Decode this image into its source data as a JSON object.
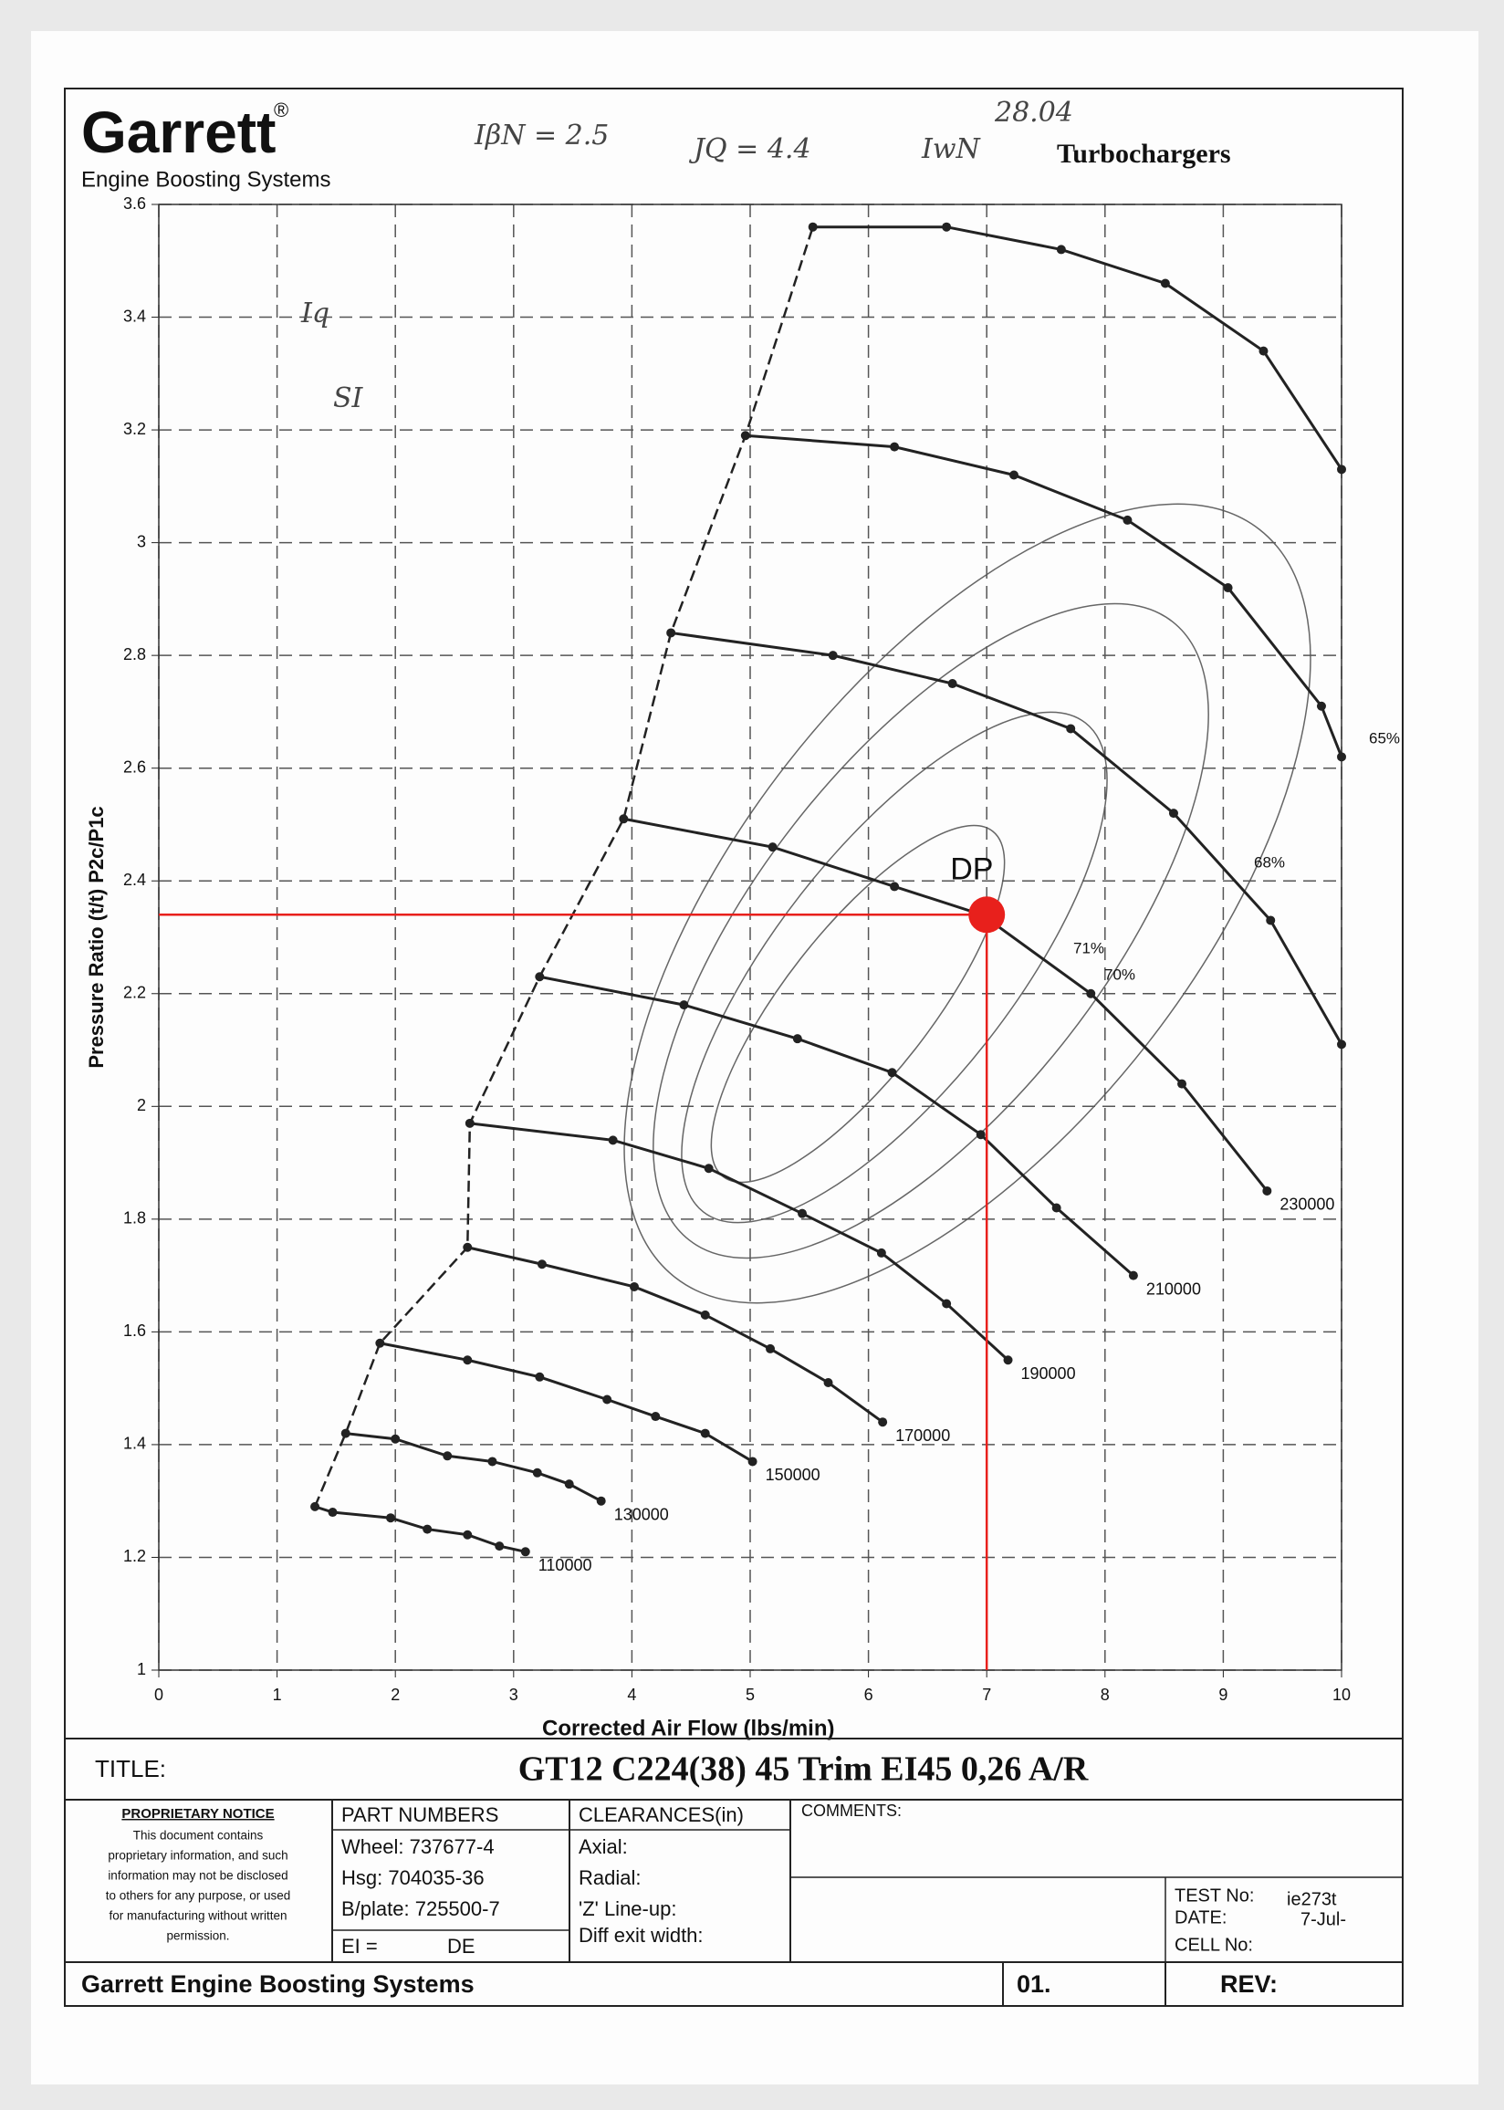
{
  "header": {
    "brand": "Garrett",
    "registered": "®",
    "subtitle": "Engine Boosting Systems",
    "product": "Turbochargers",
    "notes": [
      "IβN = 2.5",
      "JQ = 4.4",
      "IwN",
      "28.04",
      "Iq",
      "SI"
    ]
  },
  "chart_data": {
    "type": "line",
    "x_label": "Corrected Air Flow (lbs/min)",
    "y_label": "Pressure Ratio (t/t) P2c/P1c",
    "xlim": [
      0,
      10
    ],
    "xticks": [
      0,
      1,
      2,
      3,
      4,
      5,
      6,
      7,
      8,
      9,
      10
    ],
    "ylim": [
      1,
      3.6
    ],
    "yticks": [
      1,
      1.2,
      1.4,
      1.6,
      1.8,
      2,
      2.2,
      2.4,
      2.6,
      2.8,
      3,
      3.2,
      3.4,
      3.6
    ],
    "grid": true,
    "series": [
      {
        "name": "110000",
        "color": "#222222",
        "x": [
          1.32,
          1.47,
          1.96,
          2.27,
          2.61,
          2.88,
          3.1
        ],
        "values": [
          1.29,
          1.28,
          1.27,
          1.25,
          1.24,
          1.22,
          1.21
        ]
      },
      {
        "name": "130000",
        "color": "#222222",
        "x": [
          1.58,
          2.0,
          2.44,
          2.82,
          3.2,
          3.47,
          3.74
        ],
        "values": [
          1.42,
          1.41,
          1.38,
          1.37,
          1.35,
          1.33,
          1.3
        ]
      },
      {
        "name": "150000",
        "color": "#222222",
        "x": [
          1.87,
          2.61,
          3.22,
          3.79,
          4.2,
          4.62,
          5.02
        ],
        "values": [
          1.58,
          1.55,
          1.52,
          1.48,
          1.45,
          1.42,
          1.37
        ]
      },
      {
        "name": "170000",
        "color": "#222222",
        "x": [
          2.61,
          3.24,
          4.02,
          4.62,
          5.17,
          5.66,
          6.12
        ],
        "values": [
          1.75,
          1.72,
          1.68,
          1.63,
          1.57,
          1.51,
          1.44
        ]
      },
      {
        "name": "190000",
        "color": "#222222",
        "x": [
          2.63,
          3.84,
          4.65,
          5.44,
          6.11,
          6.66,
          7.18
        ],
        "values": [
          1.97,
          1.94,
          1.89,
          1.81,
          1.74,
          1.65,
          1.55
        ]
      },
      {
        "name": "210000",
        "color": "#222222",
        "x": [
          3.22,
          4.44,
          5.4,
          6.2,
          6.95,
          7.59,
          8.24
        ],
        "values": [
          2.23,
          2.18,
          2.12,
          2.06,
          1.95,
          1.82,
          1.7
        ]
      },
      {
        "name": "230000",
        "color": "#222222",
        "x": [
          3.93,
          5.19,
          6.22,
          6.96,
          7.88,
          8.65,
          9.37
        ],
        "values": [
          2.51,
          2.46,
          2.39,
          2.34,
          2.2,
          2.04,
          1.85
        ]
      },
      {
        "color": "#222222",
        "x": [
          4.33,
          5.7,
          6.71,
          7.71,
          8.58,
          9.4,
          10.0
        ],
        "values": [
          2.84,
          2.8,
          2.75,
          2.67,
          2.52,
          2.33,
          2.11
        ]
      },
      {
        "color": "#222222",
        "x": [
          4.96,
          6.22,
          7.23,
          8.19,
          9.04,
          9.83,
          10.0
        ],
        "values": [
          3.19,
          3.17,
          3.12,
          3.04,
          2.92,
          2.71,
          2.62
        ]
      },
      {
        "color": "#222222",
        "x": [
          5.53,
          6.66,
          7.63,
          8.51,
          9.34,
          10.0
        ],
        "values": [
          3.56,
          3.56,
          3.52,
          3.46,
          3.34,
          3.13
        ]
      }
    ],
    "annotations": [
      "65%",
      "68%",
      "71%",
      "70%"
    ],
    "design_point": {
      "label": "DP",
      "x": 7.0,
      "y": 2.34,
      "color": "#e8201c"
    }
  },
  "title_block": {
    "title_label": "TITLE:",
    "title": "GT12 C224(38) 45 Trim EI45 0,26 A/R",
    "notice_title": "PROPRIETARY NOTICE",
    "notice_lines": [
      "This document contains",
      "proprietary information, and such",
      "information may not be disclosed",
      "to others for any purpose, or used",
      "for manufacturing without written",
      "permission."
    ],
    "part_numbers": {
      "header": "PART NUMBERS",
      "lines": [
        "Wheel: 737677-4",
        "Hsg:   704035-36",
        "B/plate:  725500-7"
      ],
      "ei": "EI =",
      "ei_value": "DE"
    },
    "clearances": {
      "header": "CLEARANCES(in)",
      "lines": [
        "Axial:",
        "Radial:",
        "'Z' Line-up:",
        "Diff exit width:"
      ]
    },
    "comments": "COMMENTS:",
    "test": {
      "test_label": "TEST No:",
      "test_value": "ie273t",
      "date_label": "DATE:",
      "date_value": "7-Jul-",
      "cell_label": "CELL No:"
    },
    "footer": {
      "company": "Garrett Engine Boosting Systems",
      "sheet": "01.",
      "rev": "REV:"
    }
  }
}
